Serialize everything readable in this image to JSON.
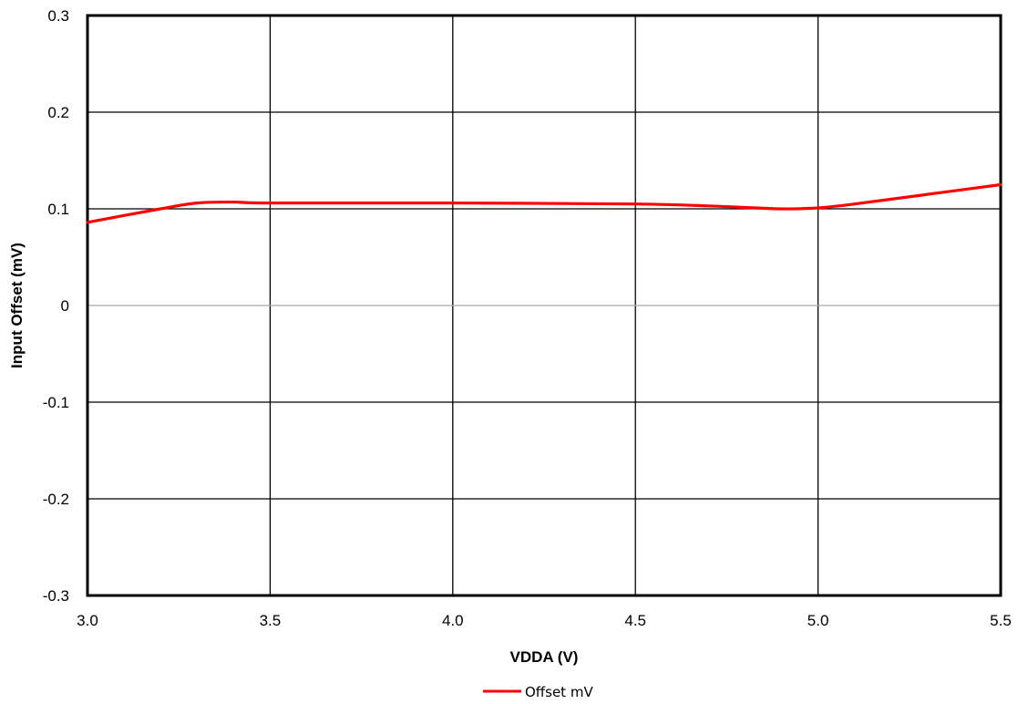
{
  "chart_data": {
    "type": "line",
    "title": "",
    "xlabel": "VDDA (V)",
    "ylabel": "Input Offset (mV)",
    "xlim": [
      3.0,
      5.5
    ],
    "ylim": [
      -0.3,
      0.3
    ],
    "x_ticks": [
      "3.0",
      "3.5",
      "4.0",
      "4.5",
      "5.0",
      "5.5"
    ],
    "y_ticks": [
      "0.3",
      "0.2",
      "0.1",
      "0",
      "-0.1",
      "-0.2",
      "-0.3"
    ],
    "grid": true,
    "legend_position": "bottom-center",
    "series": [
      {
        "name": "Offset mV",
        "color": "#ff0000",
        "x": [
          3.0,
          3.2,
          3.3,
          3.4,
          3.5,
          4.0,
          4.5,
          4.7,
          4.9,
          5.0,
          5.1,
          5.3,
          5.5
        ],
        "y": [
          0.086,
          0.1,
          0.106,
          0.107,
          0.106,
          0.106,
          0.105,
          0.103,
          0.1,
          0.101,
          0.105,
          0.115,
          0.125
        ]
      }
    ]
  }
}
